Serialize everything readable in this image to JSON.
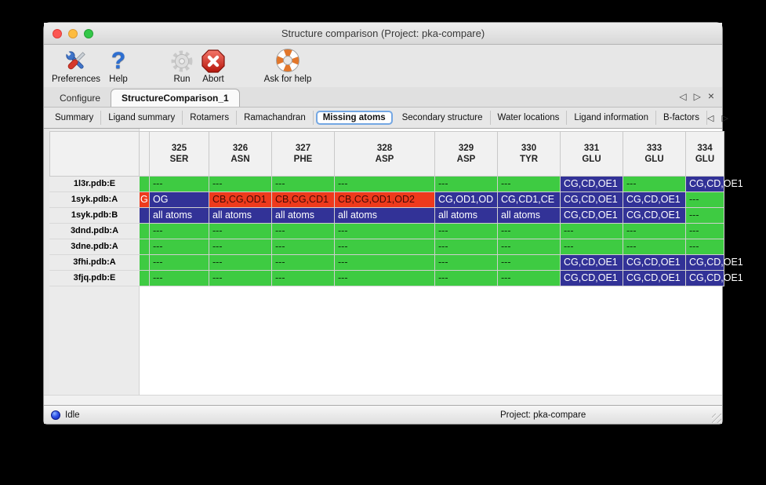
{
  "window": {
    "title": "Structure comparison (Project: pka-compare)"
  },
  "toolbar": {
    "items": [
      {
        "label": "Preferences",
        "icon": "tools-icon"
      },
      {
        "label": "Help",
        "icon": "question-icon"
      },
      {
        "label": "Run",
        "icon": "gear-icon"
      },
      {
        "label": "Abort",
        "icon": "abort-icon"
      },
      {
        "label": "Ask for help",
        "icon": "lifebuoy-icon"
      }
    ]
  },
  "tabs": {
    "items": [
      {
        "label": "Configure",
        "selected": false
      },
      {
        "label": "StructureComparison_1",
        "selected": true
      }
    ],
    "controls": {
      "left": "◁",
      "right": "▷",
      "close": "×"
    }
  },
  "subtabs": {
    "items": [
      {
        "label": "Summary",
        "selected": false
      },
      {
        "label": "Ligand summary",
        "selected": false
      },
      {
        "label": "Rotamers",
        "selected": false
      },
      {
        "label": "Ramachandran",
        "selected": false
      },
      {
        "label": "Missing atoms",
        "selected": true
      },
      {
        "label": "Secondary structure",
        "selected": false
      },
      {
        "label": "Water locations",
        "selected": false
      },
      {
        "label": "Ligand information",
        "selected": false
      },
      {
        "label": "B-factors",
        "selected": false
      }
    ],
    "controls": {
      "left": "◁",
      "right": "▷"
    }
  },
  "colors": {
    "green": "#3ecb42",
    "red": "#ee3a1c",
    "blue": "#323297"
  },
  "table": {
    "columns": [
      {
        "num": "325",
        "res": "SER"
      },
      {
        "num": "326",
        "res": "ASN"
      },
      {
        "num": "327",
        "res": "PHE"
      },
      {
        "num": "328",
        "res": "ASP"
      },
      {
        "num": "329",
        "res": "ASP"
      },
      {
        "num": "330",
        "res": "TYR"
      },
      {
        "num": "331",
        "res": "GLU"
      },
      {
        "num": "333",
        "res": "GLU"
      },
      {
        "num": "334",
        "res": "GLU"
      }
    ],
    "rows": [
      {
        "label": "1l3r.pdb:E",
        "strip": {
          "t": "",
          "c": "g"
        },
        "cells": [
          {
            "t": "---",
            "c": "g"
          },
          {
            "t": "---",
            "c": "g"
          },
          {
            "t": "---",
            "c": "g"
          },
          {
            "t": "---",
            "c": "g"
          },
          {
            "t": "---",
            "c": "g"
          },
          {
            "t": "---",
            "c": "g"
          },
          {
            "t": "CG,CD,OE1",
            "c": "b"
          },
          {
            "t": "---",
            "c": "g"
          },
          {
            "t": "CG,CD,OE1",
            "c": "b"
          }
        ]
      },
      {
        "label": "1syk.pdb:A",
        "strip": {
          "t": "G",
          "c": "r",
          "w": 1
        },
        "cells": [
          {
            "t": "OG",
            "c": "b"
          },
          {
            "t": "CB,CG,OD1",
            "c": "r"
          },
          {
            "t": "CB,CG,CD1",
            "c": "r"
          },
          {
            "t": "CB,CG,OD1,OD2",
            "c": "r"
          },
          {
            "t": "CG,OD1,OD",
            "c": "b"
          },
          {
            "t": "CG,CD1,CE",
            "c": "b"
          },
          {
            "t": "CG,CD,OE1",
            "c": "b"
          },
          {
            "t": "CG,CD,OE1",
            "c": "b"
          },
          {
            "t": "---",
            "c": "g"
          }
        ]
      },
      {
        "label": "1syk.pdb:B",
        "strip": {
          "t": "",
          "c": "b"
        },
        "cells": [
          {
            "t": "all atoms",
            "c": "b"
          },
          {
            "t": "all atoms",
            "c": "b"
          },
          {
            "t": "all atoms",
            "c": "b"
          },
          {
            "t": "all atoms",
            "c": "b"
          },
          {
            "t": "all atoms",
            "c": "b"
          },
          {
            "t": "all atoms",
            "c": "b"
          },
          {
            "t": "CG,CD,OE1",
            "c": "b"
          },
          {
            "t": "CG,CD,OE1",
            "c": "b"
          },
          {
            "t": "---",
            "c": "g"
          }
        ]
      },
      {
        "label": "3dnd.pdb:A",
        "strip": {
          "t": "",
          "c": "g"
        },
        "cells": [
          {
            "t": "---",
            "c": "g"
          },
          {
            "t": "---",
            "c": "g"
          },
          {
            "t": "---",
            "c": "g"
          },
          {
            "t": "---",
            "c": "g"
          },
          {
            "t": "---",
            "c": "g"
          },
          {
            "t": "---",
            "c": "g"
          },
          {
            "t": "---",
            "c": "g"
          },
          {
            "t": "---",
            "c": "g"
          },
          {
            "t": "---",
            "c": "g"
          }
        ]
      },
      {
        "label": "3dne.pdb:A",
        "strip": {
          "t": "",
          "c": "g"
        },
        "cells": [
          {
            "t": "---",
            "c": "g"
          },
          {
            "t": "---",
            "c": "g"
          },
          {
            "t": "---",
            "c": "g"
          },
          {
            "t": "---",
            "c": "g"
          },
          {
            "t": "---",
            "c": "g"
          },
          {
            "t": "---",
            "c": "g"
          },
          {
            "t": "---",
            "c": "g"
          },
          {
            "t": "---",
            "c": "g"
          },
          {
            "t": "---",
            "c": "g"
          }
        ]
      },
      {
        "label": "3fhi.pdb:A",
        "strip": {
          "t": "",
          "c": "g"
        },
        "cells": [
          {
            "t": "---",
            "c": "g"
          },
          {
            "t": "---",
            "c": "g"
          },
          {
            "t": "---",
            "c": "g"
          },
          {
            "t": "---",
            "c": "g"
          },
          {
            "t": "---",
            "c": "g"
          },
          {
            "t": "---",
            "c": "g"
          },
          {
            "t": "CG,CD,OE1",
            "c": "b"
          },
          {
            "t": "CG,CD,OE1",
            "c": "b"
          },
          {
            "t": "CG,CD,OE1",
            "c": "b"
          }
        ]
      },
      {
        "label": "3fjq.pdb:E",
        "strip": {
          "t": "",
          "c": "g"
        },
        "cells": [
          {
            "t": "---",
            "c": "g"
          },
          {
            "t": "---",
            "c": "g"
          },
          {
            "t": "---",
            "c": "g"
          },
          {
            "t": "---",
            "c": "g"
          },
          {
            "t": "---",
            "c": "g"
          },
          {
            "t": "---",
            "c": "g"
          },
          {
            "t": "CG,CD,OE1",
            "c": "b"
          },
          {
            "t": "CG,CD,OE1",
            "c": "b"
          },
          {
            "t": "CG,CD,OE1",
            "c": "b"
          }
        ]
      }
    ]
  },
  "statusbar": {
    "status": "Idle",
    "project": "Project: pka-compare"
  }
}
